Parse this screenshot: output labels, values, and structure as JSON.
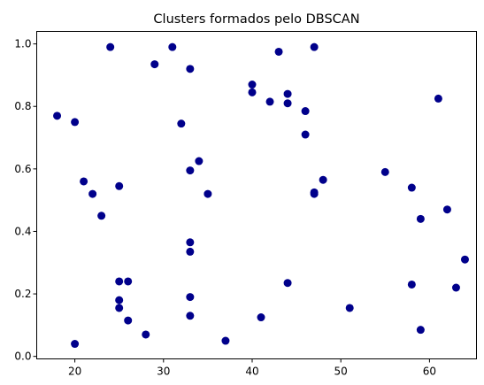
{
  "chart_data": {
    "type": "scatter",
    "title": "Clusters formados pelo DBSCAN",
    "xlabel": "",
    "ylabel": "",
    "xlim": [
      15.7,
      65.3
    ],
    "ylim": [
      -0.008,
      1.04
    ],
    "x_ticks": [
      20,
      30,
      40,
      50,
      60
    ],
    "x_tick_labels": [
      "20",
      "30",
      "40",
      "50",
      "60"
    ],
    "y_ticks": [
      0.0,
      0.2,
      0.4,
      0.6,
      0.8,
      1.0
    ],
    "y_tick_labels": [
      "0.0",
      "0.2",
      "0.4",
      "0.6",
      "0.8",
      "1.0"
    ],
    "grid": false,
    "marker_color": "#00008b",
    "series": [
      {
        "points": [
          [
            18,
            0.77
          ],
          [
            20,
            0.75
          ],
          [
            20,
            0.04
          ],
          [
            21,
            0.56
          ],
          [
            22,
            0.52
          ],
          [
            23,
            0.45
          ],
          [
            24,
            0.99
          ],
          [
            25,
            0.545
          ],
          [
            25,
            0.24
          ],
          [
            25,
            0.18
          ],
          [
            25,
            0.155
          ],
          [
            26,
            0.24
          ],
          [
            26,
            0.115
          ],
          [
            28,
            0.07
          ],
          [
            29,
            0.935
          ],
          [
            31,
            0.99
          ],
          [
            32,
            0.745
          ],
          [
            33,
            0.92
          ],
          [
            33,
            0.595
          ],
          [
            33,
            0.365
          ],
          [
            33,
            0.335
          ],
          [
            33,
            0.19
          ],
          [
            33,
            0.13
          ],
          [
            34,
            0.625
          ],
          [
            35,
            0.52
          ],
          [
            37,
            0.05
          ],
          [
            40,
            0.87
          ],
          [
            40,
            0.845
          ],
          [
            41,
            0.125
          ],
          [
            42,
            0.815
          ],
          [
            43,
            0.975
          ],
          [
            44,
            0.84
          ],
          [
            44,
            0.81
          ],
          [
            44,
            0.235
          ],
          [
            46,
            0.785
          ],
          [
            46,
            0.71
          ],
          [
            47,
            0.99
          ],
          [
            47,
            0.525
          ],
          [
            47,
            0.52
          ],
          [
            48,
            0.565
          ],
          [
            51,
            0.155
          ],
          [
            55,
            0.59
          ],
          [
            58,
            0.54
          ],
          [
            58,
            0.23
          ],
          [
            59,
            0.44
          ],
          [
            59,
            0.085
          ],
          [
            61,
            0.825
          ],
          [
            62,
            0.47
          ],
          [
            63,
            0.22
          ],
          [
            64,
            0.31
          ]
        ]
      }
    ]
  }
}
